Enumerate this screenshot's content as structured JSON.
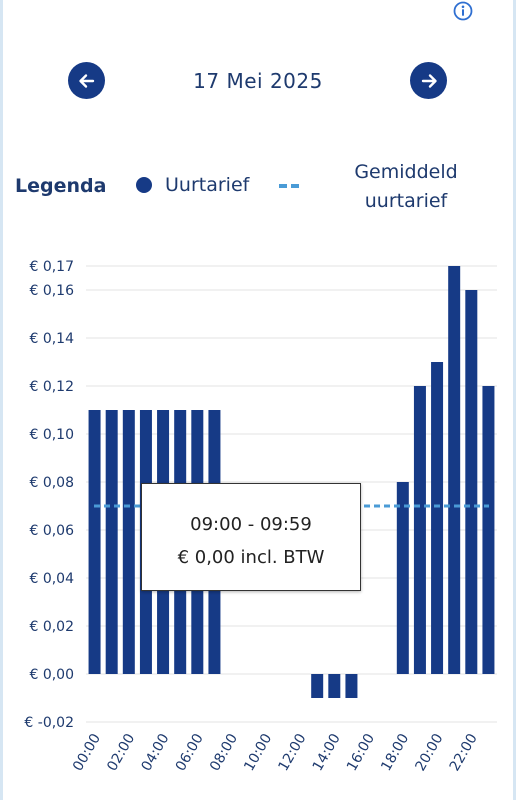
{
  "header": {
    "date": "17 Mei 2025",
    "prev_icon": "arrow-left-icon",
    "next_icon": "arrow-right-icon",
    "info_icon": "info-icon"
  },
  "legend": {
    "title": "Legenda",
    "hour_rate": "Uurtarief",
    "avg_rate": "Gemiddeld uurtarief"
  },
  "colors": {
    "bar": "#163a86",
    "average_line": "#4a9bd6",
    "grid": "#e3e3e3"
  },
  "tooltip": {
    "time_range": "09:00 - 09:59",
    "price": "€ 0,00 incl. BTW"
  },
  "chart_data": {
    "type": "bar",
    "categories": [
      "00:00",
      "01:00",
      "02:00",
      "03:00",
      "04:00",
      "05:00",
      "06:00",
      "07:00",
      "08:00",
      "09:00",
      "10:00",
      "11:00",
      "12:00",
      "13:00",
      "14:00",
      "15:00",
      "16:00",
      "17:00",
      "18:00",
      "19:00",
      "20:00",
      "21:00",
      "22:00",
      "23:00"
    ],
    "series": [
      {
        "name": "Uurtarief",
        "values": [
          0.11,
          0.11,
          0.11,
          0.11,
          0.11,
          0.11,
          0.11,
          0.11,
          0.0,
          0.0,
          0.0,
          0.0,
          0.0,
          -0.01,
          -0.01,
          -0.01,
          0.0,
          0.0,
          0.08,
          0.12,
          0.13,
          0.17,
          0.16,
          0.12
        ]
      }
    ],
    "average": 0.07,
    "x_tick_labels": [
      "00:00",
      "02:00",
      "04:00",
      "06:00",
      "08:00",
      "10:00",
      "12:00",
      "14:00",
      "16:00",
      "18:00",
      "20:00",
      "22:00"
    ],
    "y_tick_values": [
      -0.02,
      0.0,
      0.02,
      0.04,
      0.06,
      0.08,
      0.1,
      0.12,
      0.14,
      0.16,
      0.17
    ],
    "y_tick_labels": [
      "€ -0,02",
      "€ 0,00",
      "€ 0,02",
      "€ 0,04",
      "€ 0,06",
      "€ 0,08",
      "€ 0,10",
      "€ 0,12",
      "€ 0,14",
      "€ 0,16",
      "€ 0,17"
    ],
    "ylim": [
      -0.02,
      0.17
    ],
    "grid": true
  }
}
